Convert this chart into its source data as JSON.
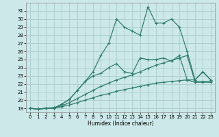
{
  "title": "",
  "xlabel": "Humidex (Indice chaleur)",
  "background_color": "#cce8e8",
  "grid_color": "#aacccc",
  "line_color": "#2e7d6e",
  "x_values": [
    0,
    1,
    2,
    3,
    4,
    5,
    6,
    7,
    8,
    9,
    10,
    11,
    12,
    13,
    14,
    15,
    16,
    17,
    18,
    19,
    20,
    21,
    22,
    23
  ],
  "line1": [
    19,
    18.9,
    19,
    19,
    19.5,
    20.1,
    21.2,
    22.3,
    23.5,
    25.5,
    27.0,
    30.0,
    29.0,
    28.5,
    28.0,
    31.5,
    29.5,
    29.5,
    30.0,
    29.0,
    26.0,
    22.5,
    23.5,
    22.5
  ],
  "line2": [
    19,
    18.9,
    19,
    19,
    19.5,
    20.1,
    21.2,
    22.3,
    23.0,
    23.3,
    24.0,
    24.5,
    23.5,
    23.3,
    25.2,
    25.0,
    25.0,
    25.2,
    24.8,
    25.5,
    22.5,
    22.5,
    23.5,
    22.5
  ],
  "line3": [
    19,
    18.9,
    19,
    19.1,
    19.3,
    19.7,
    20.2,
    20.7,
    21.2,
    21.7,
    22.1,
    22.5,
    22.8,
    23.1,
    23.5,
    23.9,
    24.3,
    24.6,
    24.9,
    25.2,
    25.5,
    22.3,
    22.3,
    22.3
  ],
  "line4": [
    19,
    18.9,
    19,
    19.0,
    19.2,
    19.4,
    19.7,
    20.0,
    20.3,
    20.6,
    20.8,
    21.1,
    21.3,
    21.5,
    21.7,
    21.9,
    22.1,
    22.2,
    22.3,
    22.4,
    22.5,
    22.2,
    22.2,
    22.2
  ],
  "ylim": [
    18.5,
    32.0
  ],
  "xlim": [
    -0.5,
    23.5
  ],
  "yticks": [
    19,
    20,
    21,
    22,
    23,
    24,
    25,
    26,
    27,
    28,
    29,
    30,
    31
  ],
  "xticks": [
    0,
    1,
    2,
    3,
    4,
    5,
    6,
    7,
    8,
    9,
    10,
    11,
    12,
    13,
    14,
    15,
    16,
    17,
    18,
    19,
    20,
    21,
    22,
    23
  ]
}
